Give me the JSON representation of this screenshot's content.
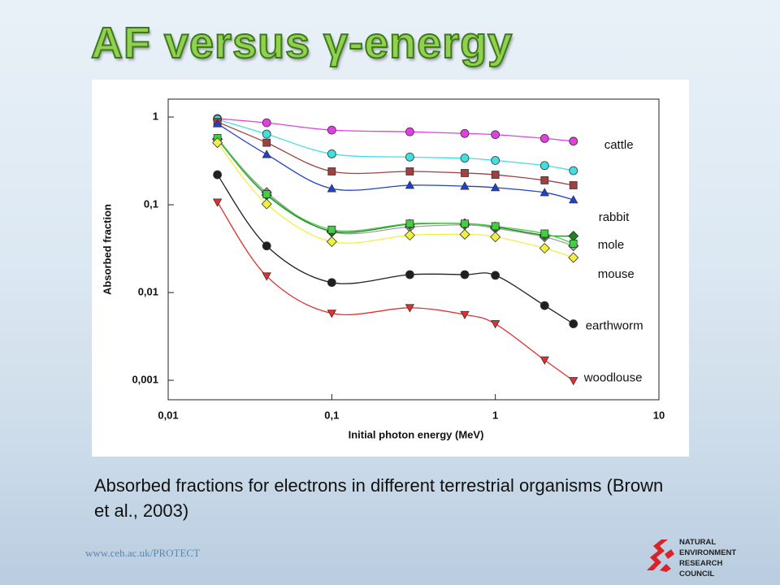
{
  "title": "AF versus γ-energy",
  "caption": "Absorbed fractions for electrons in different terrestrial organisms (Brown et al., 2003)",
  "footer": "www.ceh.ac.uk/PROTECT",
  "logo": [
    "NATURAL",
    "ENVIRONMENT",
    "RESEARCH COUNCIL"
  ],
  "chart_data": {
    "type": "line",
    "xlabel": "Initial photon energy (MeV)",
    "ylabel": "Absorbed fraction",
    "x": [
      0.02,
      0.04,
      0.1,
      0.3,
      0.65,
      1,
      2,
      3
    ],
    "xlog": true,
    "ylog": true,
    "xlim": [
      0.01,
      10
    ],
    "ylim": [
      0.0006,
      1.6
    ],
    "xticks": [
      {
        "value": 0.01,
        "label": "0,01"
      },
      {
        "value": 0.1,
        "label": "0,1"
      },
      1,
      10
    ],
    "yticks": [
      {
        "value": 0.001,
        "label": "0,001"
      },
      {
        "value": 0.01,
        "label": "0,01"
      },
      {
        "value": 0.1,
        "label": "0,1"
      },
      1
    ],
    "series": [
      {
        "name": "cattle",
        "color": "#e040e0",
        "marker": "circle",
        "values": [
          0.96,
          0.86,
          0.71,
          0.68,
          0.65,
          0.63,
          0.57,
          0.53
        ]
      },
      {
        "color": "#40e0e0",
        "marker": "circle",
        "values": [
          0.94,
          0.64,
          0.38,
          0.35,
          0.34,
          0.32,
          0.28,
          0.245
        ]
      },
      {
        "color": "#a04040",
        "marker": "square",
        "values": [
          0.88,
          0.51,
          0.24,
          0.24,
          0.23,
          0.22,
          0.19,
          0.167
        ]
      },
      {
        "name": "rabbit",
        "color": "#2040d0",
        "marker": "triangle",
        "values": [
          0.84,
          0.375,
          0.153,
          0.167,
          0.163,
          0.157,
          0.138,
          0.114
        ]
      },
      {
        "color": "#a0a0a0",
        "marker": "diamond",
        "values": [
          0.56,
          0.138,
          0.049,
          0.056,
          0.059,
          0.054,
          0.043,
          0.034
        ]
      },
      {
        "color": "#208020",
        "marker": "diamond",
        "values": [
          0.56,
          0.129,
          0.05,
          0.06,
          0.061,
          0.056,
          0.045,
          0.044
        ]
      },
      {
        "name": "mole",
        "color": "#40d040",
        "marker": "square",
        "values": [
          0.575,
          0.132,
          0.052,
          0.061,
          0.061,
          0.057,
          0.047,
          0.036
        ]
      },
      {
        "name": "mouse",
        "color": "#f0f040",
        "marker": "diamond",
        "values": [
          0.51,
          0.102,
          0.038,
          0.045,
          0.046,
          0.043,
          0.032,
          0.025
        ]
      },
      {
        "name": "earthworm",
        "color": "#202020",
        "marker": "circle",
        "values": [
          0.22,
          0.034,
          0.013,
          0.016,
          0.016,
          0.0157,
          0.0071,
          0.0044
        ]
      },
      {
        "name": "woodlouse",
        "color": "#e03030",
        "marker": "triangle-down",
        "values": [
          0.107,
          0.0154,
          0.0058,
          0.0067,
          0.0056,
          0.0044,
          0.0017,
          0.00099
        ]
      }
    ]
  }
}
